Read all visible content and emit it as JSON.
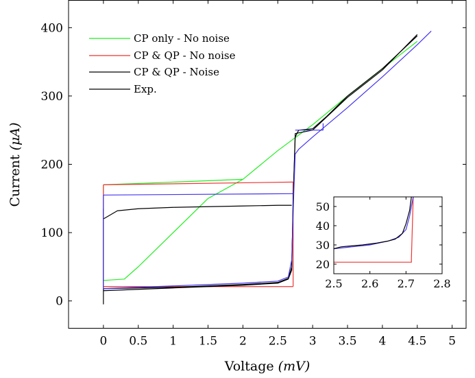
{
  "chart_data": {
    "type": "line",
    "xlabel": "Voltage",
    "xlabel_unit": "(mV)",
    "ylabel": "Current",
    "ylabel_unit": "(μA)",
    "xlim": [
      -0.5,
      5.2
    ],
    "ylim": [
      -40,
      440
    ],
    "x_ticks": [
      "0",
      "0.5",
      "1",
      "1.5",
      "2",
      "2.5",
      "3",
      "3.5",
      "4",
      "4.5",
      "5"
    ],
    "y_ticks": [
      "0",
      "100",
      "200",
      "300",
      "400"
    ],
    "grid": false,
    "legend_position": "top-left",
    "series": [
      {
        "name": "CP only - No noise",
        "color": "#22ee22",
        "segments": [
          [
            [
              0,
              30
            ],
            [
              0.3,
              32
            ],
            [
              0.5,
              50
            ],
            [
              1,
              100
            ],
            [
              1.5,
              150
            ],
            [
              2,
              178
            ],
            [
              2.5,
              220
            ],
            [
              3,
              258
            ],
            [
              3.5,
              300
            ],
            [
              4,
              340
            ],
            [
              4.5,
              380
            ]
          ],
          [
            [
              0,
              30
            ],
            [
              0,
              170
            ]
          ],
          [
            [
              0,
              170
            ],
            [
              2,
              178
            ]
          ]
        ]
      },
      {
        "name": "CP & QP - No noise",
        "color": "#ee3333",
        "segments": [
          [
            [
              0,
              21
            ],
            [
              2.72,
              21
            ]
          ],
          [
            [
              2.72,
              21
            ],
            [
              2.72,
              174
            ]
          ],
          [
            [
              0,
              170
            ],
            [
              2.72,
              174
            ]
          ],
          [
            [
              0,
              21
            ],
            [
              0,
              170
            ]
          ]
        ]
      },
      {
        "name": "CP & QP - Noise",
        "color": "#000000",
        "segments": [
          [
            [
              0,
              15
            ],
            [
              0.5,
              17
            ],
            [
              1,
              19
            ],
            [
              1.5,
              21
            ],
            [
              2,
              23
            ],
            [
              2.5,
              26
            ],
            [
              2.65,
              32
            ],
            [
              2.7,
              45
            ],
            [
              2.72,
              150
            ],
            [
              2.75,
              240
            ],
            [
              2.8,
              250
            ],
            [
              3,
              252
            ],
            [
              3.2,
              270
            ],
            [
              3.5,
              300
            ],
            [
              4,
              340
            ],
            [
              4.5,
              388
            ]
          ],
          [
            [
              0,
              -5
            ],
            [
              0,
              135
            ]
          ],
          [
            [
              0,
              120
            ],
            [
              0.2,
              132
            ],
            [
              0.5,
              135
            ],
            [
              1,
              137
            ],
            [
              1.5,
              138
            ],
            [
              2,
              139
            ],
            [
              2.5,
              140
            ],
            [
              2.7,
              140
            ]
          ]
        ]
      },
      {
        "name": "Exp.",
        "color": "#000000",
        "segments": [
          [
            [
              0,
              18
            ],
            [
              0.5,
              19
            ],
            [
              1,
              20
            ],
            [
              1.5,
              22
            ],
            [
              2,
              24
            ],
            [
              2.5,
              27
            ],
            [
              2.65,
              33
            ],
            [
              2.7,
              50
            ],
            [
              2.72,
              140
            ],
            [
              2.75,
              245
            ],
            [
              3,
              250
            ],
            [
              3.5,
              298
            ],
            [
              4,
              338
            ],
            [
              4.5,
              390
            ]
          ]
        ]
      },
      {
        "name": "",
        "color": "#4433ee",
        "segments": [
          [
            [
              0,
              155
            ],
            [
              2.72,
              157
            ]
          ],
          [
            [
              0,
              18
            ],
            [
              0.5,
              20
            ],
            [
              1,
              22
            ],
            [
              1.5,
              24
            ],
            [
              2,
              26
            ],
            [
              2.5,
              29
            ],
            [
              2.65,
              35
            ],
            [
              2.7,
              60
            ],
            [
              2.73,
              160
            ],
            [
              2.75,
              215
            ],
            [
              2.8,
              222
            ],
            [
              3,
              240
            ],
            [
              3.5,
              283
            ],
            [
              4,
              328
            ],
            [
              4.5,
              375
            ],
            [
              4.7,
              395
            ]
          ],
          [
            [
              0,
              18
            ],
            [
              0,
              155
            ]
          ],
          [
            [
              2.75,
              250
            ],
            [
              3.15,
              250
            ]
          ],
          [
            [
              3.15,
              250
            ],
            [
              3.15,
              260
            ]
          ]
        ]
      }
    ],
    "inset": {
      "xlim": [
        2.5,
        2.8
      ],
      "ylim": [
        15,
        55
      ],
      "x_ticks": [
        "2.5",
        "2.6",
        "2.7",
        "2.8"
      ],
      "y_ticks": [
        "20",
        "30",
        "40",
        "50"
      ],
      "series": [
        {
          "color": "#ee3333",
          "points": [
            [
              2.5,
              21
            ],
            [
              2.715,
              21
            ],
            [
              2.715,
              23
            ],
            [
              2.72,
              55
            ]
          ]
        },
        {
          "color": "#4433ee",
          "points": [
            [
              2.5,
              28
            ],
            [
              2.55,
              29
            ],
            [
              2.6,
              30
            ],
            [
              2.65,
              32
            ],
            [
              2.68,
              34
            ],
            [
              2.7,
              38
            ],
            [
              2.71,
              45
            ],
            [
              2.72,
              55
            ]
          ]
        },
        {
          "color": "#000000",
          "points": [
            [
              2.5,
              28
            ],
            [
              2.52,
              29
            ],
            [
              2.55,
              29.5
            ],
            [
              2.58,
              30
            ],
            [
              2.6,
              30.5
            ],
            [
              2.62,
              31
            ],
            [
              2.65,
              32
            ],
            [
              2.67,
              33
            ],
            [
              2.69,
              36
            ],
            [
              2.7,
              41
            ],
            [
              2.71,
              48
            ],
            [
              2.715,
              55
            ]
          ]
        }
      ]
    }
  }
}
